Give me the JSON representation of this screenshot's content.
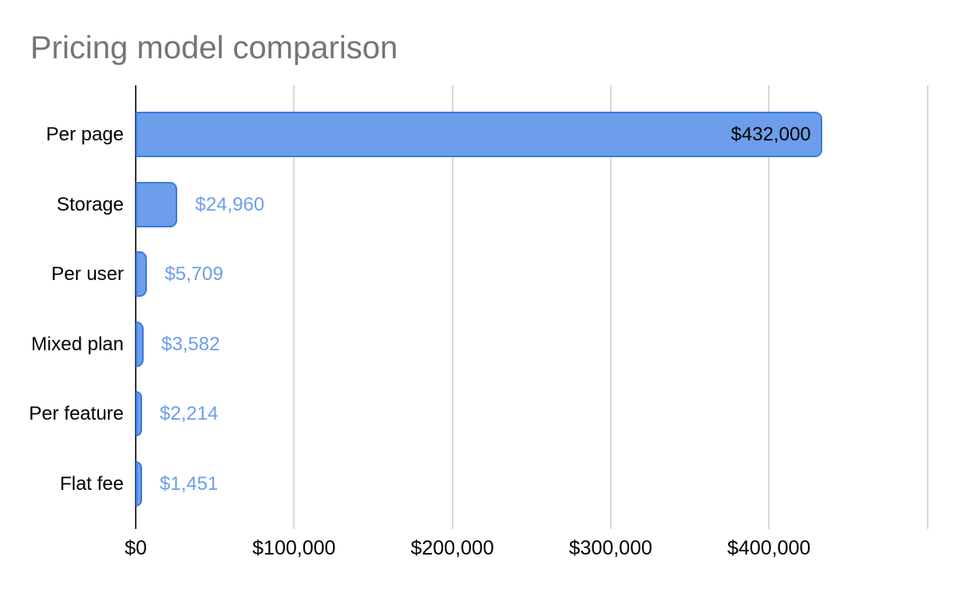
{
  "title": "Pricing model comparison",
  "colors": {
    "background": "#ffffff",
    "title_text": "#757575",
    "bar_fill": "#6d9eeb",
    "bar_border": "#3b7ae0",
    "value_label_outside": "#6d9eeb",
    "value_label_inside": "#000000",
    "category_text": "#000000",
    "axis_line": "#333333",
    "gridline": "#d9d9d9",
    "tick_text": "#000000"
  },
  "chart_data": {
    "type": "bar",
    "orientation": "horizontal",
    "title": "Pricing model comparison",
    "categories": [
      "Per page",
      "Storage",
      "Per user",
      "Mixed plan",
      "Per feature",
      "Flat fee"
    ],
    "values": [
      432000,
      24960,
      5709,
      3582,
      2214,
      1451
    ],
    "value_labels": [
      "$432,000",
      "$24,960",
      "$5,709",
      "$3,582",
      "$2,214",
      "$1,451"
    ],
    "value_label_placement": [
      "inside",
      "outside",
      "outside",
      "outside",
      "outside",
      "outside"
    ],
    "xlabel": "",
    "ylabel": "",
    "x_axis": {
      "tick_values": [
        0,
        100000,
        200000,
        300000,
        400000
      ],
      "tick_labels": [
        "$0",
        "$100,000",
        "$200,000",
        "$300,000",
        "$400,000"
      ],
      "range": [
        0,
        500000
      ],
      "unlabeled_gridline_at": 500000
    },
    "grid": true,
    "legend": false
  }
}
